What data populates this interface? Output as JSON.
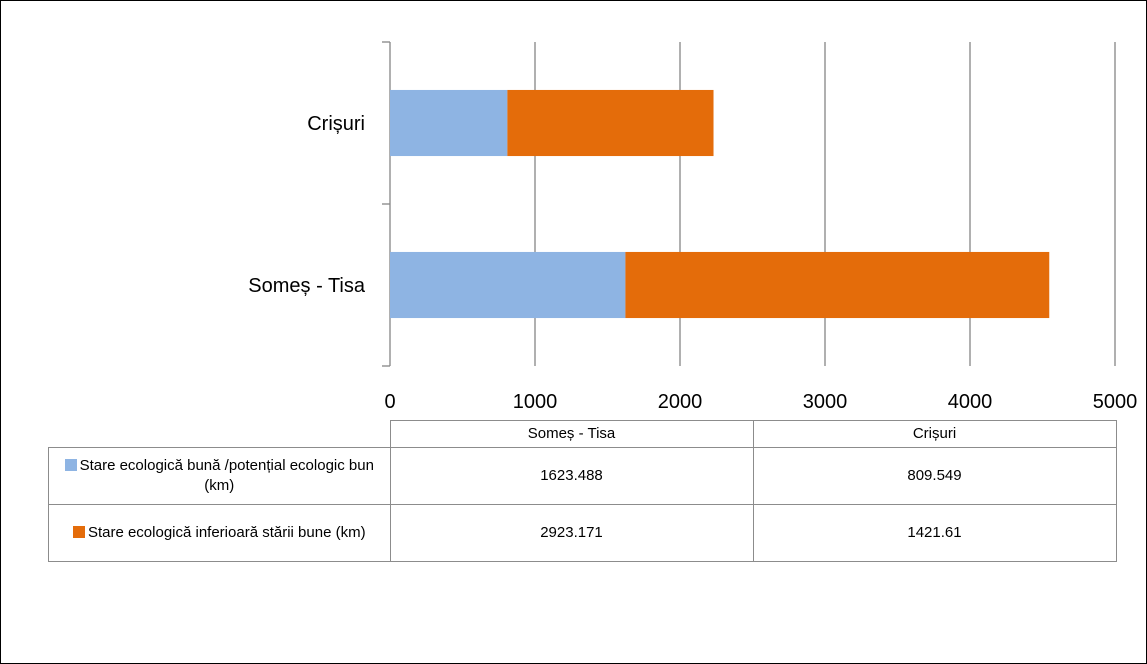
{
  "chart_data": {
    "type": "bar",
    "orientation": "horizontal",
    "stacked": true,
    "categories": [
      "Someș - Tisa",
      "Crișuri"
    ],
    "series": [
      {
        "name": "Stare ecologică bună /potențial ecologic bun (km)",
        "values": [
          1623.488,
          809.549
        ],
        "value_labels": [
          "1623.488",
          "809.549"
        ],
        "color": "#8eb4e3"
      },
      {
        "name": "Stare ecologică inferioară stării bune (km)",
        "values": [
          2923.171,
          1421.61
        ],
        "value_labels": [
          "2923.171",
          "1421.61"
        ],
        "color": "#e46c0a"
      }
    ],
    "xlim": [
      0,
      5000
    ],
    "xticks": [
      "0",
      "1000",
      "2000",
      "3000",
      "4000",
      "5000"
    ],
    "grid": "vertical",
    "legend": "data-table"
  }
}
